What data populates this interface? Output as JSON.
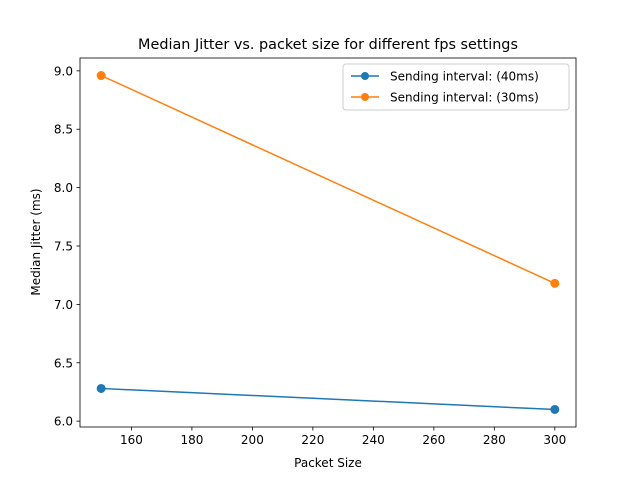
{
  "chart_data": {
    "type": "line",
    "title": "Median Jitter vs. packet size for different fps settings",
    "xlabel": "Packet Size",
    "ylabel": "Median Jitter (ms)",
    "xlim": [
      143,
      307
    ],
    "ylim": [
      5.95,
      9.11
    ],
    "xticks": [
      160,
      180,
      200,
      220,
      240,
      260,
      280,
      300
    ],
    "xtick_labels": [
      "160",
      "180",
      "200",
      "220",
      "240",
      "260",
      "280",
      "300"
    ],
    "yticks": [
      6.0,
      6.5,
      7.0,
      7.5,
      8.0,
      8.5,
      9.0
    ],
    "ytick_labels": [
      "6.0",
      "6.5",
      "7.0",
      "7.5",
      "8.0",
      "8.5",
      "9.0"
    ],
    "grid": false,
    "legend_position": "upper right",
    "series": [
      {
        "name": "Sending interval: (40ms)",
        "color": "#1f77b4",
        "marker": "circle",
        "x": [
          150,
          300
        ],
        "y": [
          6.28,
          6.1
        ]
      },
      {
        "name": "Sending interval: (30ms)",
        "color": "#ff7f0e",
        "marker": "circle",
        "x": [
          150,
          300
        ],
        "y": [
          8.96,
          7.18
        ]
      }
    ]
  }
}
